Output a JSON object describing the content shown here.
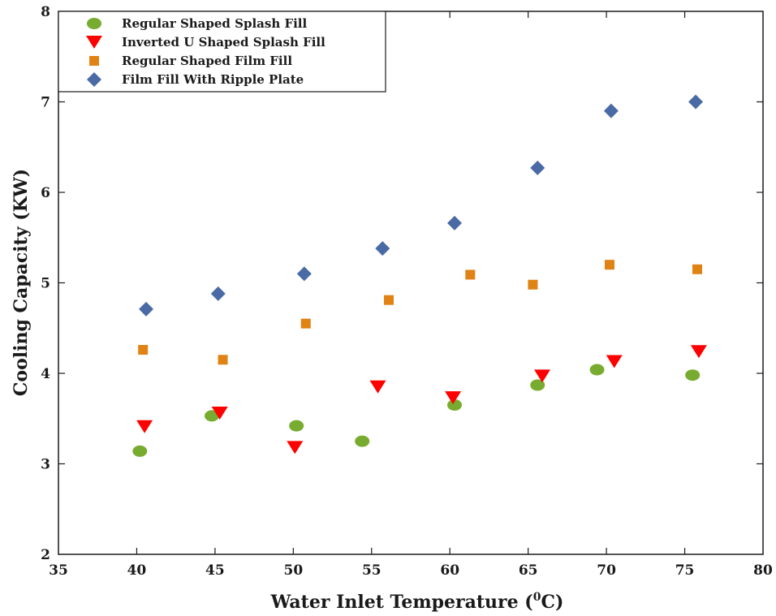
{
  "chart_data": {
    "type": "scatter",
    "xlabel": "Water Inlet Temperature (",
    "xlabel_sup": "0",
    "xlabel_tail": "C)",
    "ylabel": "Cooling Capacity (KW)",
    "xlim": [
      35,
      80
    ],
    "ylim": [
      2,
      8
    ],
    "xticks": [
      "35",
      "40",
      "45",
      "50",
      "55",
      "60",
      "65",
      "70",
      "75",
      "80"
    ],
    "yticks": [
      "2",
      "3",
      "4",
      "5",
      "6",
      "7",
      "8"
    ],
    "grid": false,
    "legend_position": "top-left",
    "series": [
      {
        "name": "Regular Shaped Splash Fill",
        "marker": "circle",
        "color": "#77ac30",
        "points": [
          [
            40.2,
            3.14
          ],
          [
            44.8,
            3.53
          ],
          [
            50.2,
            3.42
          ],
          [
            54.4,
            3.25
          ],
          [
            60.3,
            3.65
          ],
          [
            65.6,
            3.87
          ],
          [
            69.4,
            4.04
          ],
          [
            75.5,
            3.98
          ]
        ]
      },
      {
        "name": "Inverted U Shaped Splash Fill",
        "marker": "triangle-down",
        "color": "#ff0000",
        "points": [
          [
            40.5,
            3.41
          ],
          [
            45.3,
            3.56
          ],
          [
            50.1,
            3.18
          ],
          [
            55.4,
            3.85
          ],
          [
            60.2,
            3.73
          ],
          [
            65.9,
            3.97
          ],
          [
            70.5,
            4.13
          ],
          [
            75.9,
            4.24
          ]
        ]
      },
      {
        "name": "Regular Shaped Film Fill",
        "marker": "square",
        "color": "#e08214",
        "points": [
          [
            40.4,
            4.26
          ],
          [
            45.5,
            4.15
          ],
          [
            50.8,
            4.55
          ],
          [
            56.1,
            4.81
          ],
          [
            61.3,
            5.09
          ],
          [
            65.3,
            4.98
          ],
          [
            70.2,
            5.2
          ],
          [
            75.8,
            5.15
          ]
        ]
      },
      {
        "name": "Film Fill With Ripple Plate",
        "marker": "diamond",
        "color": "#4a6aa5",
        "points": [
          [
            40.6,
            4.71
          ],
          [
            45.2,
            4.88
          ],
          [
            50.7,
            5.1
          ],
          [
            55.7,
            5.38
          ],
          [
            60.3,
            5.66
          ],
          [
            65.6,
            6.27
          ],
          [
            70.3,
            6.9
          ],
          [
            75.7,
            7.0
          ]
        ]
      }
    ]
  }
}
